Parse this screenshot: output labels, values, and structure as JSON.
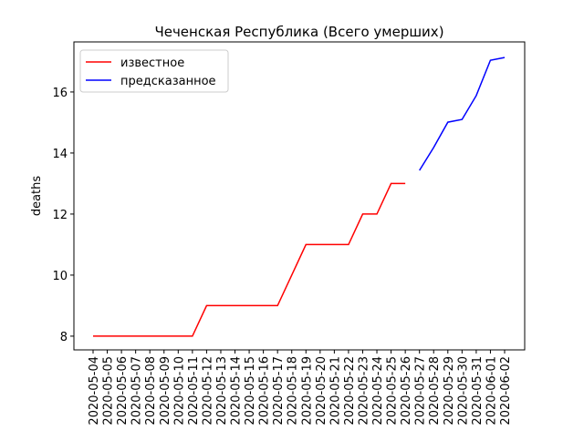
{
  "chart_data": {
    "type": "line",
    "title": "Чеченская Республика (Всего умерших)",
    "y_label": "deaths",
    "categories": [
      "2020-05-04",
      "2020-05-05",
      "2020-05-06",
      "2020-05-07",
      "2020-05-08",
      "2020-05-09",
      "2020-05-10",
      "2020-05-11",
      "2020-05-12",
      "2020-05-13",
      "2020-05-14",
      "2020-05-15",
      "2020-05-16",
      "2020-05-17",
      "2020-05-18",
      "2020-05-19",
      "2020-05-20",
      "2020-05-21",
      "2020-05-22",
      "2020-05-23",
      "2020-05-24",
      "2020-05-25",
      "2020-05-26",
      "2020-05-27",
      "2020-05-28",
      "2020-05-29",
      "2020-05-30",
      "2020-05-31",
      "2020-06-01",
      "2020-06-02"
    ],
    "series": [
      {
        "name": "известное",
        "color": "#ff0000",
        "values": [
          8,
          8,
          8,
          8,
          8,
          8,
          8,
          8,
          9,
          9,
          9,
          9,
          9,
          9,
          10,
          11,
          11,
          11,
          11,
          12,
          12,
          13,
          13,
          null,
          null,
          null,
          null,
          null,
          null,
          null
        ]
      },
      {
        "name": "предсказанное",
        "color": "#0000ff",
        "values": [
          null,
          null,
          null,
          null,
          null,
          null,
          null,
          null,
          null,
          null,
          null,
          null,
          null,
          null,
          null,
          null,
          null,
          null,
          null,
          null,
          null,
          null,
          null,
          13.43,
          14.18,
          15.01,
          15.1,
          15.88,
          17.04,
          17.13
        ]
      }
    ],
    "ylim": [
      7.55,
      17.64
    ],
    "yticks": [
      8,
      10,
      12,
      14,
      16
    ],
    "legend": "upper left"
  }
}
